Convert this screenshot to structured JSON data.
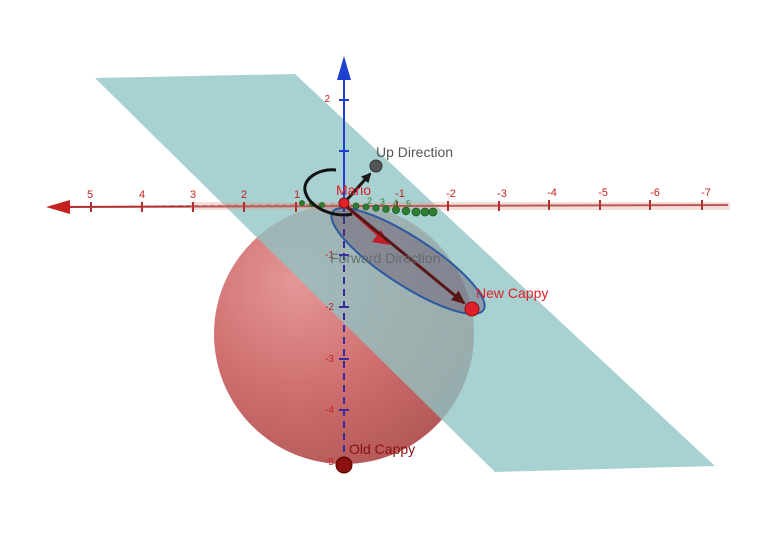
{
  "scene": {
    "x_axis": {
      "color": "#c0392b",
      "tick_labels": [
        "5",
        "4",
        "3",
        "2",
        "1",
        "-1",
        "-2",
        "-3",
        "-4",
        "-5",
        "-6",
        "-7"
      ]
    },
    "z_axis": {
      "color": "#1f3fd1",
      "tick_labels": [
        "2",
        "-1",
        "-2",
        "-3",
        "-4",
        "-5"
      ]
    },
    "small_labels": [
      "1",
      "2",
      "3",
      "4",
      "5"
    ],
    "points": {
      "mario": {
        "label": "Mario",
        "color": "#e0202a"
      },
      "new_cappy": {
        "label": "New Cappy",
        "color": "#e0202a"
      },
      "old_cappy": {
        "label": "Old Cappy",
        "color": "#8b1010"
      },
      "up_direction": {
        "label": "Up Direction",
        "color": "#555555"
      }
    },
    "vectors": {
      "forward_label": "Forward Direction"
    },
    "colors": {
      "plane": "#7fb8b8",
      "sphere": "#c84a4a",
      "ellipse": "#2c5aa0",
      "trail": "#2e7d32"
    }
  }
}
